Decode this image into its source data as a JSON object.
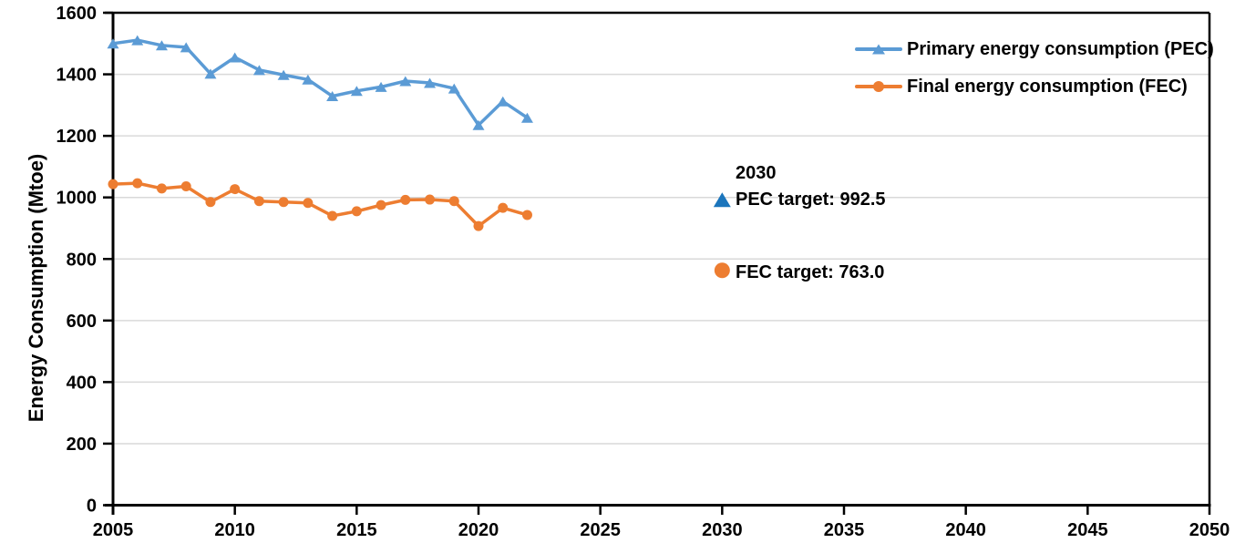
{
  "chart_data": {
    "type": "line",
    "title": "",
    "xlabel": "",
    "ylabel": "Energy Consumption (Mtoe)",
    "xlim": [
      2005,
      2050
    ],
    "ylim": [
      0,
      1600
    ],
    "x_tick_step": 5,
    "y_tick_step": 200,
    "grid": "horizontal-only",
    "gridline_color": "#D9D9D9",
    "axis_color": "#000000",
    "legend_position": "top-right",
    "x": [
      2005,
      2006,
      2007,
      2008,
      2009,
      2010,
      2011,
      2012,
      2013,
      2014,
      2015,
      2016,
      2017,
      2018,
      2019,
      2020,
      2021,
      2022
    ],
    "series": [
      {
        "name": "Primary energy consumption (PEC)",
        "color": "#5B9BD5",
        "marker": "triangle",
        "values": [
          1500,
          1511,
          1494,
          1488,
          1402,
          1455,
          1414,
          1398,
          1383,
          1329,
          1346,
          1359,
          1378,
          1372,
          1354,
          1235,
          1312,
          1259
        ]
      },
      {
        "name": "Final energy consumption (FEC)",
        "color": "#ED7D31",
        "marker": "circle",
        "values": [
          1043,
          1046,
          1029,
          1036,
          985,
          1027,
          988,
          985,
          982,
          940,
          955,
          975,
          992,
          993,
          988,
          907,
          966,
          943
        ]
      }
    ],
    "targets": {
      "x": 2030,
      "year_label": "2030",
      "items": [
        {
          "label": "PEC target: 992.5",
          "value": 992.5,
          "color": "#1B75BC",
          "marker": "triangle"
        },
        {
          "label": "FEC target: 763.0",
          "value": 763.0,
          "color": "#ED7D31",
          "marker": "circle"
        }
      ]
    }
  }
}
